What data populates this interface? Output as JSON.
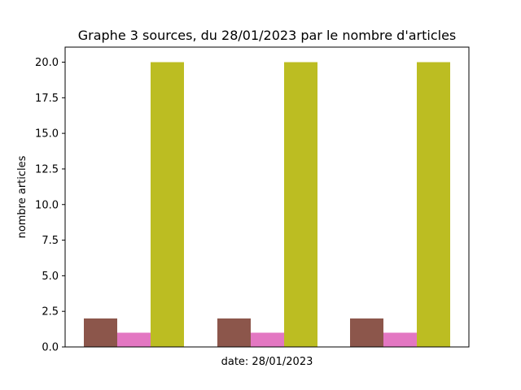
{
  "chart_data": {
    "type": "bar",
    "title": "Graphe 3 sources, du 28/01/2023 par le nombre d'articles",
    "xlabel": "date: 28/01/2023",
    "ylabel": "nombre articles",
    "ylim": [
      0,
      20
    ],
    "yticks": [
      "0.0",
      "2.5",
      "5.0",
      "7.5",
      "10.0",
      "12.5",
      "15.0",
      "17.5",
      "20.0"
    ],
    "grid": false,
    "groups": 3,
    "series": [
      {
        "values": [
          2,
          2,
          2
        ],
        "color": "#8c564b"
      },
      {
        "values": [
          1,
          1,
          1
        ],
        "color": "#e377c2"
      },
      {
        "values": [
          20,
          20,
          20
        ],
        "color": "#bcbd22"
      }
    ]
  }
}
